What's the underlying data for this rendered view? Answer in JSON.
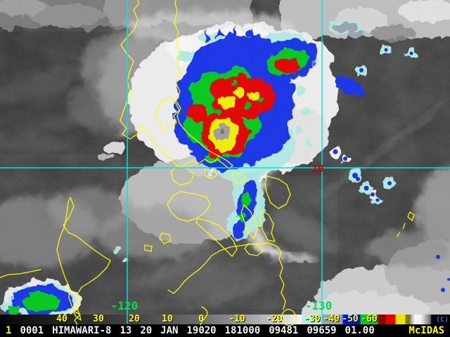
{
  "map_overlay": {
    "latitude_label": "10",
    "longitude_labels": [
      "-120",
      "-130"
    ],
    "grid_color": "#00e6e6",
    "coastline_color": "#ffff00",
    "latitude_label_color": "#c80000",
    "longitude_label_color": "#00dc50"
  },
  "colorbar": {
    "tick_labels": [
      "40",
      "30",
      "20",
      "10",
      "0",
      "-10",
      "-20",
      "-30",
      "-40",
      "-50",
      "-60"
    ],
    "unit_label": "(C)",
    "tick_color": "#ffff00",
    "unit_color": "#4b5bff",
    "segment_colors": [
      "#b4eee6",
      "#97a1ab",
      "#0014e4",
      "#00cc16",
      "#8e0000",
      "#e60000",
      "#e6e600"
    ]
  },
  "status_line": {
    "frame_number": "1",
    "fields": [
      "0001",
      "HIMAWARI-8",
      "13",
      "20",
      "JAN",
      "19020",
      "181000",
      "09481",
      "09659",
      "01.00"
    ],
    "brand": "McIDAS",
    "text_color": "#ffffff",
    "accent_color": "#ffff00"
  }
}
